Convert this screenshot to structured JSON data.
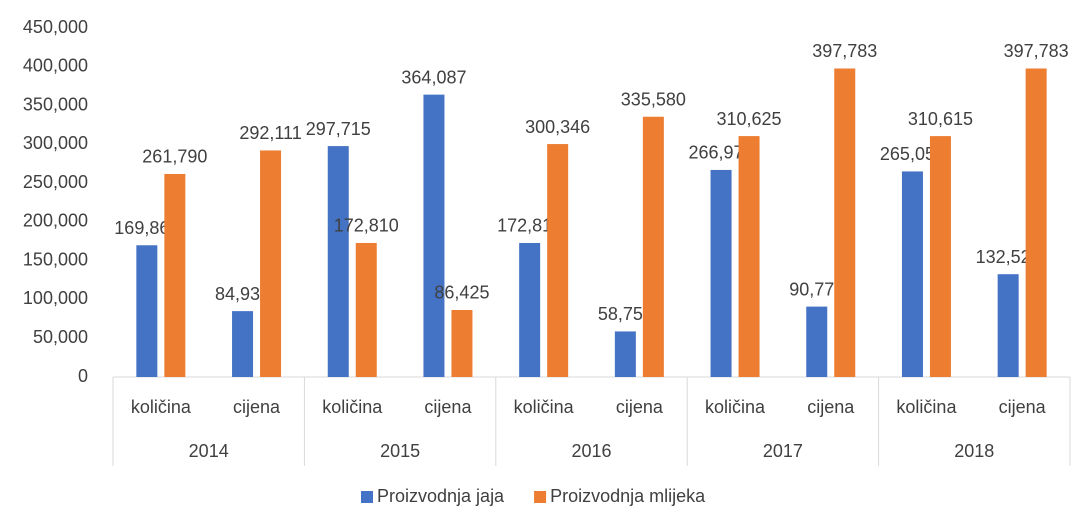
{
  "chart_data": {
    "type": "bar",
    "categories": [
      "količina",
      "cijena",
      "količina",
      "cijena",
      "količina",
      "cijena",
      "količina",
      "cijena",
      "količina",
      "cijena"
    ],
    "groups": [
      "2014",
      "2015",
      "2016",
      "2017",
      "2018"
    ],
    "series": [
      {
        "name": "Proizvodnja jaja",
        "color": "#4472c4",
        "values": [
          169866,
          84933,
          297715,
          364087,
          172812,
          58756,
          266978,
          90773,
          265050,
          132525
        ],
        "value_labels": [
          "169,866",
          "84,933",
          "297,715",
          "364,087",
          "172,812",
          "58,756",
          "266,978",
          "90,773",
          "265,050",
          "132,525"
        ]
      },
      {
        "name": "Proizvodnja mlijeka",
        "color": "#ed7d31",
        "values": [
          261790,
          292111,
          172810,
          86425,
          300346,
          335580,
          310625,
          397783,
          310615,
          397783
        ],
        "value_labels": [
          "261,790",
          "292,111",
          "172,810",
          "86,425",
          "300,346",
          "335,580",
          "310,625",
          "397,783",
          "310,615",
          "397,783"
        ]
      }
    ],
    "ylim": [
      0,
      450000
    ],
    "yticks": [
      0,
      {
        "value": 50000,
        "label": "50,000"
      },
      {
        "value": 100000,
        "label": "100,000"
      },
      {
        "value": 150000,
        "label": "150,000"
      },
      {
        "value": 200000,
        "label": "200,000"
      },
      {
        "value": 250000,
        "label": "250,000"
      },
      {
        "value": 300000,
        "label": "300,000"
      },
      {
        "value": 350000,
        "label": "350,000"
      },
      {
        "value": 400000,
        "label": "400,000"
      },
      {
        "value": 450000,
        "label": "450,000"
      }
    ],
    "grid": false,
    "legend": "bottom"
  }
}
